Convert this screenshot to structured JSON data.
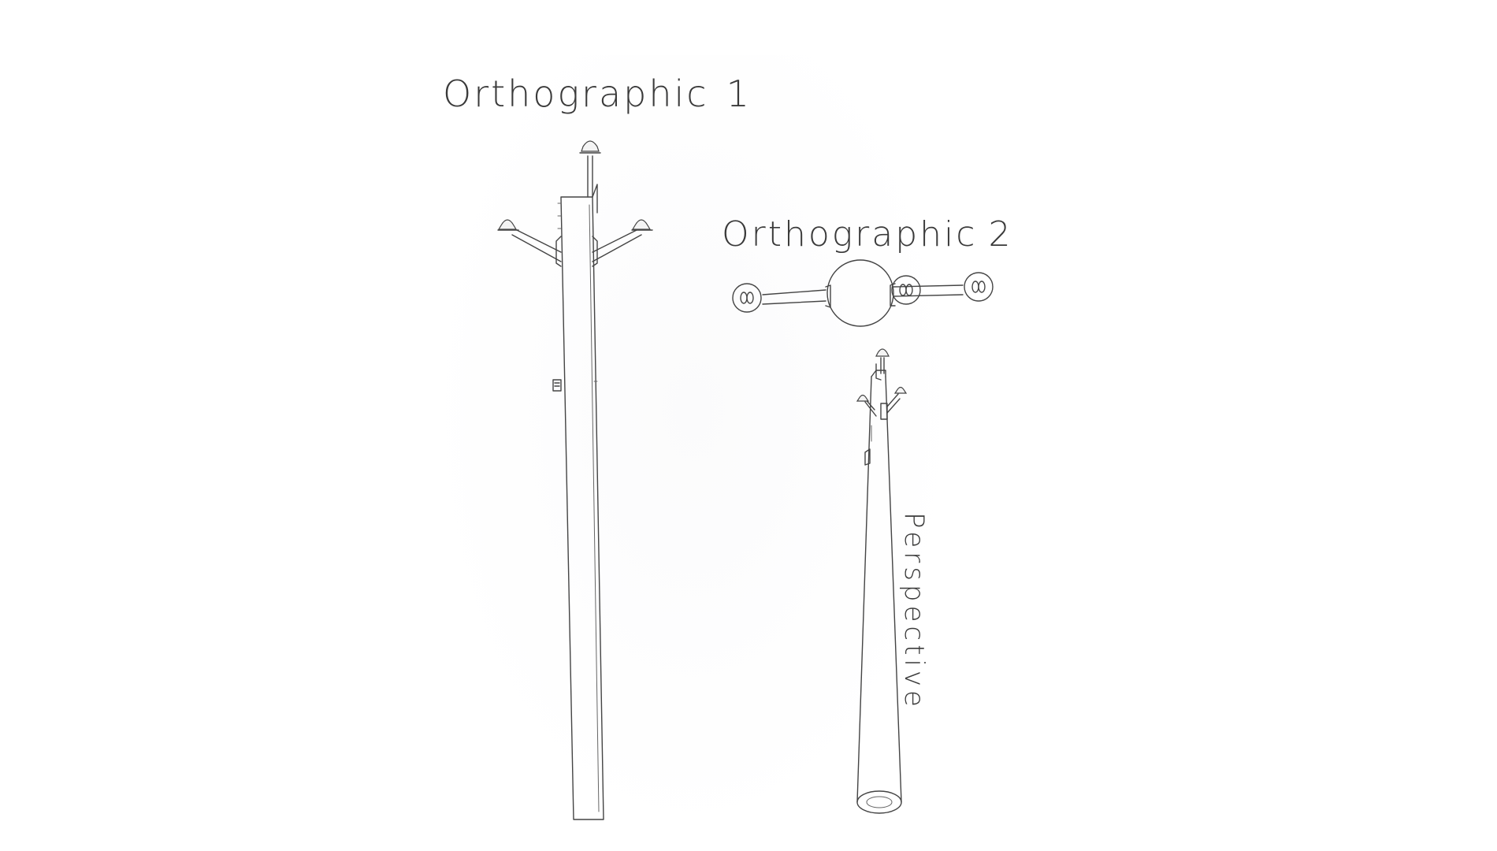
{
  "labels": {
    "ortho1_word": "Orthographic",
    "ortho1_num": "1",
    "ortho2_word": "Orthographic",
    "ortho2_num": "2",
    "perspective": "Perspective"
  }
}
